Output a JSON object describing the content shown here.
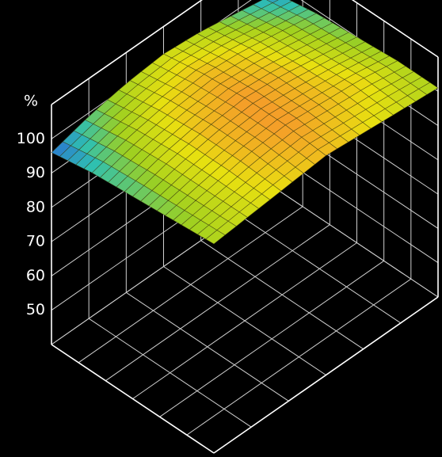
{
  "chart_data": {
    "type": "surface",
    "title": "",
    "xlabel": "",
    "ylabel": "",
    "zlabel": "%",
    "z_ticks": [
      "50",
      "60",
      "70",
      "80",
      "90",
      "100"
    ],
    "zlim": [
      40,
      110
    ],
    "grid": true,
    "surface": {
      "x_range": [
        0,
        1
      ],
      "y_range": [
        0,
        1
      ],
      "z": [
        [
          101,
          102,
          103,
          104,
          103,
          102,
          101
        ],
        [
          100,
          102,
          104,
          105,
          104,
          103,
          101
        ],
        [
          99,
          102,
          104,
          105,
          104,
          102,
          100
        ],
        [
          98,
          101,
          103,
          104,
          103,
          101,
          99
        ],
        [
          96,
          99,
          101,
          102,
          101,
          99,
          97
        ]
      ]
    },
    "colorscale": [
      "#2a6fd6",
      "#2fc0b0",
      "#9ed020",
      "#e8e010",
      "#f59a2a"
    ]
  }
}
